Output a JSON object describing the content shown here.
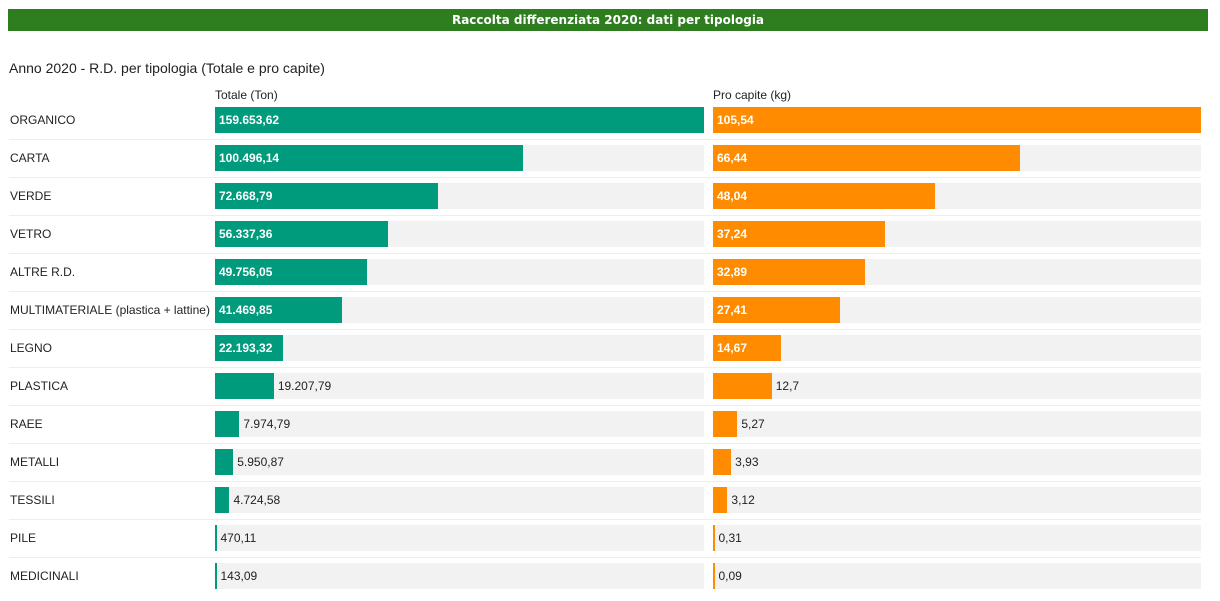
{
  "banner": {
    "title": "Raccolta differenziata 2020: dati per tipologia"
  },
  "chart_data": {
    "type": "bar",
    "orientation": "horizontal",
    "title": "Anno 2020 - R.D. per tipologia (Totale e pro capite)",
    "categories": [
      "ORGANICO",
      "CARTA",
      "VERDE",
      "VETRO",
      "ALTRE R.D.",
      "MULTIMATERIALE (plastica + lattine)",
      "LEGNO",
      "PLASTICA",
      "RAEE",
      "METALLI",
      "TESSILI",
      "PILE",
      "MEDICINALI"
    ],
    "series": [
      {
        "name": "Totale (Ton)",
        "color": "#009b7d",
        "values": [
          159653.62,
          100496.14,
          72668.79,
          56337.36,
          49756.05,
          41469.85,
          22193.32,
          19207.79,
          7974.79,
          5950.87,
          4724.58,
          470.11,
          143.09
        ],
        "labels": [
          "159.653,62",
          "100.496,14",
          "72.668,79",
          "56.337,36",
          "49.756,05",
          "41.469,85",
          "22.193,32",
          "19.207,79",
          "7.974,79",
          "5.950,87",
          "4.724,58",
          "470,11",
          "143,09"
        ]
      },
      {
        "name": "Pro capite (kg)",
        "color": "#ff8c00",
        "values": [
          105.54,
          66.44,
          48.04,
          37.24,
          32.89,
          27.41,
          14.67,
          12.7,
          5.27,
          3.93,
          3.12,
          0.31,
          0.09
        ],
        "labels": [
          "105,54",
          "66,44",
          "48,04",
          "37,24",
          "32,89",
          "27,41",
          "14,67",
          "12,7",
          "5,27",
          "3,93",
          "3,12",
          "0,31",
          "0,09"
        ]
      }
    ],
    "grid": false,
    "legend": "column headers"
  }
}
